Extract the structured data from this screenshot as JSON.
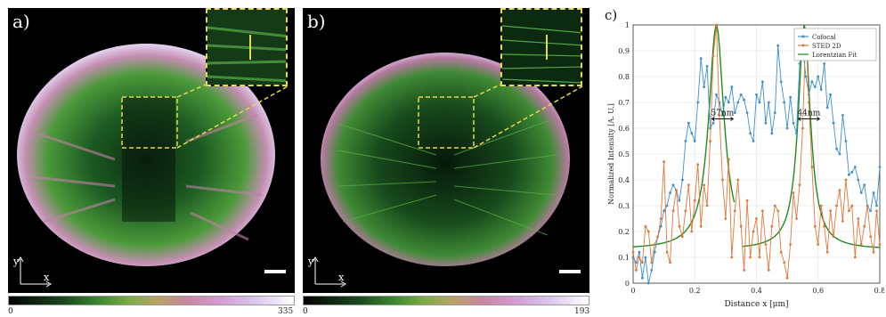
{
  "panels": {
    "a": {
      "label": "a)",
      "colorbar": {
        "min": "0",
        "max": "335"
      },
      "axes": {
        "x": "x",
        "y": "y"
      }
    },
    "b": {
      "label": "b)",
      "colorbar": {
        "min": "0",
        "max": "193"
      },
      "axes": {
        "x": "x",
        "y": "y"
      }
    },
    "c": {
      "label": "c)"
    }
  },
  "colors": {
    "confocal": "#3b8fd0",
    "sted": "#e0773a",
    "lorentzian": "#1f8a1f",
    "inset_frame": "#e6d84a"
  },
  "chart_data": {
    "type": "line",
    "xlabel": "Distance x [μm]",
    "ylabel": "Normalized Intensity [A. U.]",
    "xlim": [
      0,
      0.8
    ],
    "ylim": [
      0,
      1
    ],
    "xticks": [
      "0",
      "0.2",
      "0.4",
      "0.6",
      "0.8"
    ],
    "yticks": [
      "0",
      "0.1",
      "0.2",
      "0.3",
      "0.4",
      "0.5",
      "0.6",
      "0.7",
      "0.8",
      "0.9",
      "1"
    ],
    "legend_position": "top-right",
    "annotations": [
      "57nm",
      "44nm"
    ],
    "annotation_positions": [
      {
        "x": 0.29,
        "y": 0.65
      },
      {
        "x": 0.57,
        "y": 0.65
      }
    ],
    "series": [
      {
        "name": "Cofocal",
        "x": [
          0.0,
          0.01,
          0.02,
          0.03,
          0.04,
          0.05,
          0.06,
          0.07,
          0.08,
          0.09,
          0.1,
          0.11,
          0.12,
          0.13,
          0.14,
          0.15,
          0.16,
          0.17,
          0.18,
          0.19,
          0.2,
          0.21,
          0.22,
          0.23,
          0.24,
          0.25,
          0.26,
          0.27,
          0.28,
          0.29,
          0.3,
          0.31,
          0.32,
          0.33,
          0.34,
          0.35,
          0.36,
          0.37,
          0.38,
          0.39,
          0.4,
          0.41,
          0.42,
          0.43,
          0.44,
          0.45,
          0.46,
          0.47,
          0.48,
          0.49,
          0.5,
          0.51,
          0.52,
          0.53,
          0.54,
          0.55,
          0.56,
          0.57,
          0.58,
          0.59,
          0.6,
          0.61,
          0.62,
          0.63,
          0.64,
          0.65,
          0.66,
          0.67,
          0.68,
          0.69,
          0.7,
          0.71,
          0.72,
          0.73,
          0.74,
          0.75,
          0.76,
          0.77,
          0.78,
          0.79,
          0.8
        ],
        "values": [
          0.1,
          0.08,
          0.12,
          0.02,
          0.1,
          0.0,
          0.05,
          0.12,
          0.18,
          0.22,
          0.28,
          0.3,
          0.35,
          0.38,
          0.36,
          0.32,
          0.4,
          0.55,
          0.62,
          0.58,
          0.55,
          0.7,
          0.87,
          0.76,
          0.84,
          0.6,
          0.62,
          0.73,
          0.7,
          0.65,
          0.72,
          0.7,
          0.76,
          0.66,
          0.7,
          0.73,
          0.71,
          0.66,
          0.58,
          0.55,
          0.73,
          0.7,
          0.78,
          0.62,
          0.7,
          0.58,
          0.66,
          0.92,
          0.78,
          0.7,
          0.6,
          0.72,
          0.62,
          0.58,
          0.85,
          0.92,
          0.8,
          0.73,
          0.78,
          0.76,
          0.8,
          0.75,
          0.85,
          0.68,
          0.73,
          0.62,
          0.52,
          0.5,
          0.65,
          0.55,
          0.42,
          0.43,
          0.45,
          0.4,
          0.35,
          0.38,
          0.3,
          0.28,
          0.35,
          0.3,
          0.45
        ]
      },
      {
        "name": "STED 2D",
        "x": [
          0.0,
          0.01,
          0.02,
          0.03,
          0.04,
          0.05,
          0.06,
          0.07,
          0.08,
          0.09,
          0.1,
          0.11,
          0.12,
          0.13,
          0.14,
          0.15,
          0.16,
          0.17,
          0.18,
          0.19,
          0.2,
          0.21,
          0.22,
          0.23,
          0.24,
          0.25,
          0.26,
          0.27,
          0.28,
          0.29,
          0.3,
          0.31,
          0.32,
          0.33,
          0.34,
          0.35,
          0.36,
          0.37,
          0.38,
          0.39,
          0.4,
          0.41,
          0.42,
          0.43,
          0.44,
          0.45,
          0.46,
          0.47,
          0.48,
          0.49,
          0.5,
          0.51,
          0.52,
          0.53,
          0.54,
          0.55,
          0.56,
          0.57,
          0.58,
          0.59,
          0.6,
          0.61,
          0.62,
          0.63,
          0.64,
          0.65,
          0.66,
          0.67,
          0.68,
          0.69,
          0.7,
          0.71,
          0.72,
          0.73,
          0.74,
          0.75,
          0.76,
          0.77,
          0.78,
          0.79,
          0.8
        ],
        "values": [
          0.12,
          0.05,
          0.1,
          0.08,
          0.22,
          0.2,
          0.08,
          0.15,
          0.18,
          0.25,
          0.47,
          0.12,
          0.08,
          0.28,
          0.36,
          0.22,
          0.18,
          0.28,
          0.38,
          0.2,
          0.32,
          0.46,
          0.22,
          0.38,
          0.3,
          0.55,
          0.88,
          1.0,
          0.65,
          0.4,
          0.25,
          0.48,
          0.1,
          0.28,
          0.4,
          0.22,
          0.05,
          0.32,
          0.1,
          0.2,
          0.25,
          0.1,
          0.28,
          0.15,
          0.05,
          0.22,
          0.3,
          0.28,
          0.12,
          0.08,
          0.02,
          0.15,
          0.35,
          0.25,
          0.38,
          0.6,
          0.98,
          0.7,
          0.45,
          0.22,
          0.15,
          0.3,
          0.22,
          0.12,
          0.28,
          0.18,
          0.3,
          0.36,
          0.24,
          0.4,
          0.28,
          0.3,
          0.1,
          0.25,
          0.15,
          0.22,
          0.3,
          0.18,
          0.12,
          0.28,
          0.15
        ]
      },
      {
        "name": "Lorentzian Fit",
        "type": "fit",
        "peaks": [
          {
            "x0": 0.27,
            "gamma": 0.03,
            "baseline": 0.13
          },
          {
            "x0": 0.555,
            "gamma": 0.024,
            "baseline": 0.13
          }
        ]
      }
    ]
  }
}
